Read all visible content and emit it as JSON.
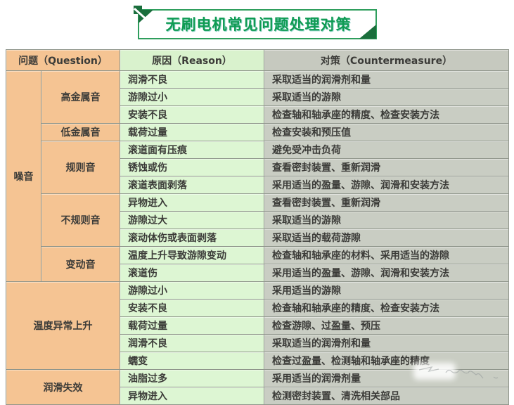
{
  "title": "无刷电机常见问题处理对策",
  "header": {
    "question": "问题（Question）",
    "reason": "原因（Reason）",
    "countermeasure": "对策（Countermeasure）"
  },
  "colors": {
    "question_bg": "#f5c493",
    "reason_bg": "#ddf6d3",
    "countermeasure_bg": "#c9cdc3",
    "title_green": "#0f9b53",
    "dark_green": "#1a6e3c",
    "border": "#8f958b"
  },
  "table": {
    "groups": [
      {
        "category": "噪音",
        "merged": false,
        "subgroups": [
          {
            "name": "高金属音",
            "rows": [
              {
                "reason": "润滑不良",
                "countermeasure": "采取适当的润滑剂和量"
              },
              {
                "reason": "游隙过小",
                "countermeasure": "采取适当的游隙"
              },
              {
                "reason": "安装不良",
                "countermeasure": "检查轴和轴承座的精度、检查安装方法"
              }
            ]
          },
          {
            "name": "低金属音",
            "rows": [
              {
                "reason": "载荷过量",
                "countermeasure": "检查安装和预压值"
              }
            ]
          },
          {
            "name": "规则音",
            "rows": [
              {
                "reason": "滚道面有压痕",
                "countermeasure": "避免受冲击负荷"
              },
              {
                "reason": "锈蚀或伤",
                "countermeasure": "查看密封装置、重新润滑"
              },
              {
                "reason": "滚道表面剥落",
                "countermeasure": "采用适当的盈量、游隙、润滑和安装方法"
              }
            ]
          },
          {
            "name": "不规则音",
            "rows": [
              {
                "reason": "异物进入",
                "countermeasure": "查看密封装置、重新润滑"
              },
              {
                "reason": "游隙过大",
                "countermeasure": "采取适当的游隙"
              },
              {
                "reason": "滚动体伤或表面剥落",
                "countermeasure": "采取适当的载荷游隙"
              }
            ]
          },
          {
            "name": "变动音",
            "rows": [
              {
                "reason": "温度上升导致游隙变动",
                "countermeasure": "检查轴和轴承座的材料、采用适当的游隙"
              },
              {
                "reason": "滚道伤",
                "countermeasure": "采用适当的盈量、游隙、润滑和安装方法"
              }
            ]
          }
        ]
      },
      {
        "category": "温度异常上升",
        "merged": true,
        "rows": [
          {
            "reason": "游隙过小",
            "countermeasure": "采用适当的游隙"
          },
          {
            "reason": "安装不良",
            "countermeasure": "检查轴和轴承座的精度、检查安装方法"
          },
          {
            "reason": "载荷过量",
            "countermeasure": "检查游隙、过盈量、预压"
          },
          {
            "reason": "润滑不良",
            "countermeasure": "采取适当的润滑剂和量"
          },
          {
            "reason": "蠕变",
            "countermeasure": "检查过盈量、检测轴和轴承座的精度"
          }
        ]
      },
      {
        "category": "润滑失效",
        "merged": true,
        "rows": [
          {
            "reason": "油脂过多",
            "countermeasure": "采用适当的润滑剂量"
          },
          {
            "reason": "异物进入",
            "countermeasure": "检测密封装置、清洗相关部品"
          }
        ]
      }
    ]
  }
}
